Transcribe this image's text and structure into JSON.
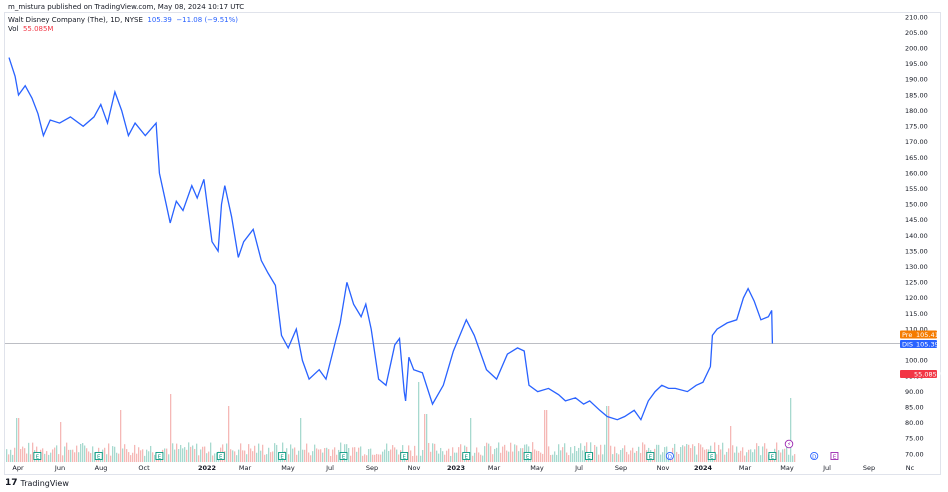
{
  "header": {
    "published_line": "m_mistura published on TradingView.com, May 08, 2024 10:17 UTC"
  },
  "legend": {
    "symbol_line": "Walt Disney Company (The), 1D, NYSE",
    "last": "105.39",
    "change": "−11.08 (−9.51%)",
    "vol_label": "Vol",
    "vol_value": "55.085M"
  },
  "footer": {
    "brand": "TradingView"
  },
  "badges": {
    "pre_label": "Pre",
    "pre_value": "105.41",
    "dis_label": "DIS",
    "dis_value": "105.39",
    "vol_value": "55.085M"
  },
  "colors": {
    "line": "#2962ff",
    "pre_badge": "#f57c00",
    "dis_badge": "#2962ff",
    "vol_badge": "#f23645",
    "vol_up": "#a7d9cf",
    "vol_down": "#f5b8b6",
    "earnings": "#089981",
    "dividend": "#2962ff",
    "split": "#9c27b0"
  },
  "chart_data": {
    "type": "line",
    "title": "Walt Disney Company (The), 1D, NYSE",
    "y_ticks": [
      "210.00",
      "205.00",
      "200.00",
      "195.00",
      "190.00",
      "185.00",
      "180.00",
      "175.00",
      "170.00",
      "165.00",
      "160.00",
      "155.00",
      "150.00",
      "145.00",
      "140.00",
      "135.00",
      "130.00",
      "125.00",
      "120.00",
      "115.00",
      "110.00",
      "105.00",
      "100.00",
      "95.00",
      "90.00",
      "85.00",
      "80.00",
      "75.00",
      "70.00"
    ],
    "ylim": [
      70,
      210
    ],
    "x_ticks": [
      "Apr",
      "Jun",
      "Aug",
      "Oct",
      "2022",
      "Mar",
      "May",
      "Jul",
      "Sep",
      "Nov",
      "2023",
      "Mar",
      "May",
      "Jul",
      "Sep",
      "Nov",
      "2024",
      "Mar",
      "May",
      "Jul",
      "Sep",
      "Nc"
    ],
    "price_path": [
      {
        "x": "2021-04-01",
        "y": 197
      },
      {
        "x": "2021-04-10",
        "y": 191
      },
      {
        "x": "2021-04-15",
        "y": 185
      },
      {
        "x": "2021-04-25",
        "y": 188
      },
      {
        "x": "2021-05-05",
        "y": 184
      },
      {
        "x": "2021-05-14",
        "y": 179
      },
      {
        "x": "2021-05-22",
        "y": 172
      },
      {
        "x": "2021-06-01",
        "y": 177
      },
      {
        "x": "2021-06-15",
        "y": 176
      },
      {
        "x": "2021-07-01",
        "y": 178
      },
      {
        "x": "2021-07-20",
        "y": 175
      },
      {
        "x": "2021-08-05",
        "y": 178
      },
      {
        "x": "2021-08-15",
        "y": 182
      },
      {
        "x": "2021-08-25",
        "y": 176
      },
      {
        "x": "2021-09-05",
        "y": 186
      },
      {
        "x": "2021-09-15",
        "y": 180
      },
      {
        "x": "2021-09-25",
        "y": 172
      },
      {
        "x": "2021-10-05",
        "y": 176
      },
      {
        "x": "2021-10-20",
        "y": 172
      },
      {
        "x": "2021-11-05",
        "y": 176
      },
      {
        "x": "2021-11-10",
        "y": 160
      },
      {
        "x": "2021-11-20",
        "y": 150
      },
      {
        "x": "2021-11-26",
        "y": 144
      },
      {
        "x": "2021-12-05",
        "y": 151
      },
      {
        "x": "2021-12-15",
        "y": 148
      },
      {
        "x": "2021-12-28",
        "y": 156
      },
      {
        "x": "2022-01-05",
        "y": 152
      },
      {
        "x": "2022-01-15",
        "y": 158
      },
      {
        "x": "2022-01-27",
        "y": 138
      },
      {
        "x": "2022-02-05",
        "y": 135
      },
      {
        "x": "2022-02-10",
        "y": 150
      },
      {
        "x": "2022-02-15",
        "y": 156
      },
      {
        "x": "2022-02-25",
        "y": 146
      },
      {
        "x": "2022-03-07",
        "y": 133
      },
      {
        "x": "2022-03-15",
        "y": 138
      },
      {
        "x": "2022-03-29",
        "y": 142
      },
      {
        "x": "2022-04-10",
        "y": 132
      },
      {
        "x": "2022-04-20",
        "y": 128
      },
      {
        "x": "2022-05-01",
        "y": 124
      },
      {
        "x": "2022-05-10",
        "y": 108
      },
      {
        "x": "2022-05-20",
        "y": 104
      },
      {
        "x": "2022-06-01",
        "y": 110
      },
      {
        "x": "2022-06-10",
        "y": 100
      },
      {
        "x": "2022-06-20",
        "y": 94
      },
      {
        "x": "2022-07-05",
        "y": 97
      },
      {
        "x": "2022-07-15",
        "y": 94
      },
      {
        "x": "2022-07-29",
        "y": 106
      },
      {
        "x": "2022-08-05",
        "y": 112
      },
      {
        "x": "2022-08-15",
        "y": 125
      },
      {
        "x": "2022-08-25",
        "y": 118
      },
      {
        "x": "2022-09-05",
        "y": 114
      },
      {
        "x": "2022-09-12",
        "y": 118
      },
      {
        "x": "2022-09-20",
        "y": 110
      },
      {
        "x": "2022-10-01",
        "y": 94
      },
      {
        "x": "2022-10-12",
        "y": 92
      },
      {
        "x": "2022-10-25",
        "y": 105
      },
      {
        "x": "2022-11-01",
        "y": 107
      },
      {
        "x": "2022-11-08",
        "y": 90
      },
      {
        "x": "2022-11-10",
        "y": 87
      },
      {
        "x": "2022-11-15",
        "y": 101
      },
      {
        "x": "2022-11-22",
        "y": 97
      },
      {
        "x": "2022-12-05",
        "y": 96
      },
      {
        "x": "2022-12-20",
        "y": 86
      },
      {
        "x": "2023-01-05",
        "y": 92
      },
      {
        "x": "2023-01-20",
        "y": 103
      },
      {
        "x": "2023-02-08",
        "y": 113
      },
      {
        "x": "2023-02-20",
        "y": 108
      },
      {
        "x": "2023-03-10",
        "y": 97
      },
      {
        "x": "2023-03-25",
        "y": 94
      },
      {
        "x": "2023-04-10",
        "y": 102
      },
      {
        "x": "2023-04-25",
        "y": 104
      },
      {
        "x": "2023-05-05",
        "y": 103
      },
      {
        "x": "2023-05-12",
        "y": 92
      },
      {
        "x": "2023-05-25",
        "y": 90
      },
      {
        "x": "2023-06-10",
        "y": 91
      },
      {
        "x": "2023-06-25",
        "y": 89
      },
      {
        "x": "2023-07-05",
        "y": 87
      },
      {
        "x": "2023-07-20",
        "y": 88
      },
      {
        "x": "2023-08-01",
        "y": 86
      },
      {
        "x": "2023-08-10",
        "y": 87
      },
      {
        "x": "2023-08-25",
        "y": 84
      },
      {
        "x": "2023-09-05",
        "y": 82
      },
      {
        "x": "2023-09-20",
        "y": 81
      },
      {
        "x": "2023-10-01",
        "y": 82
      },
      {
        "x": "2023-10-15",
        "y": 84
      },
      {
        "x": "2023-10-25",
        "y": 81
      },
      {
        "x": "2023-11-05",
        "y": 87
      },
      {
        "x": "2023-11-15",
        "y": 90
      },
      {
        "x": "2023-11-25",
        "y": 92
      },
      {
        "x": "2023-12-05",
        "y": 91
      },
      {
        "x": "2023-12-15",
        "y": 91
      },
      {
        "x": "2024-01-02",
        "y": 90
      },
      {
        "x": "2024-01-15",
        "y": 92
      },
      {
        "x": "2024-01-25",
        "y": 93
      },
      {
        "x": "2024-02-05",
        "y": 98
      },
      {
        "x": "2024-02-08",
        "y": 108
      },
      {
        "x": "2024-02-15",
        "y": 110
      },
      {
        "x": "2024-03-01",
        "y": 112
      },
      {
        "x": "2024-03-15",
        "y": 113
      },
      {
        "x": "2024-03-25",
        "y": 120
      },
      {
        "x": "2024-04-01",
        "y": 123
      },
      {
        "x": "2024-04-10",
        "y": 119
      },
      {
        "x": "2024-04-20",
        "y": 113
      },
      {
        "x": "2024-05-01",
        "y": 114
      },
      {
        "x": "2024-05-06",
        "y": 116
      },
      {
        "x": "2024-05-07",
        "y": 105.39
      }
    ],
    "last_price": 105.39,
    "premarket_price": 105.41,
    "last_volume": "55.085M",
    "event_markers": [
      {
        "date": "2021-05-13",
        "type": "earnings",
        "label": "E"
      },
      {
        "date": "2021-08-12",
        "type": "earnings",
        "label": "E"
      },
      {
        "date": "2021-11-10",
        "type": "earnings",
        "label": "E"
      },
      {
        "date": "2022-02-09",
        "type": "earnings",
        "label": "E"
      },
      {
        "date": "2022-05-11",
        "type": "earnings",
        "label": "E"
      },
      {
        "date": "2022-08-10",
        "type": "earnings",
        "label": "E"
      },
      {
        "date": "2022-11-08",
        "type": "earnings",
        "label": "E"
      },
      {
        "date": "2023-02-08",
        "type": "earnings",
        "label": "E"
      },
      {
        "date": "2023-05-10",
        "type": "earnings",
        "label": "E"
      },
      {
        "date": "2023-08-09",
        "type": "earnings",
        "label": "E"
      },
      {
        "date": "2023-11-08",
        "type": "earnings",
        "label": "E"
      },
      {
        "date": "2023-12-07",
        "type": "dividend",
        "label": "D"
      },
      {
        "date": "2024-02-07",
        "type": "earnings",
        "label": "E"
      },
      {
        "date": "2024-05-07",
        "type": "earnings",
        "label": "E"
      },
      {
        "date": "2024-07-08",
        "type": "dividend",
        "label": "D"
      },
      {
        "date": "2024-08-07",
        "type": "split",
        "label": "E"
      }
    ]
  }
}
